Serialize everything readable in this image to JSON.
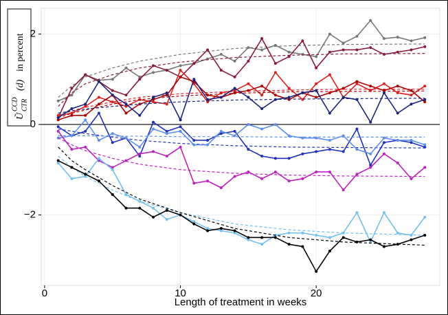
{
  "chart_data": {
    "type": "line",
    "x_label": "Length of treatment in weeks",
    "y_label": {
      "symbol": "Ũ",
      "superscript": "CCD",
      "subscript": "CTR",
      "argument": "(d)",
      "unit": "in percent"
    },
    "x": [
      1,
      2,
      3,
      4,
      5,
      6,
      7,
      8,
      9,
      10,
      11,
      12,
      13,
      14,
      15,
      16,
      17,
      18,
      19,
      20,
      21,
      22,
      23,
      24,
      25,
      26,
      27,
      28
    ],
    "fit_x": [
      1,
      2,
      3,
      5,
      7,
      10,
      14,
      18,
      22,
      28
    ],
    "xlim": [
      -0.25,
      29.1
    ],
    "ylim": [
      -3.56,
      2.57
    ],
    "xticks": [
      0,
      10,
      20
    ],
    "yticks": [
      {
        "value": -2,
        "label": "−2"
      },
      0,
      2
    ],
    "grid": true,
    "zero_line": true,
    "series": [
      {
        "color": "#777777",
        "values": [
          0.52,
          0.65,
          1.1,
          0.98,
          1.0,
          1.25,
          1.05,
          1.15,
          1.2,
          1.3,
          1.35,
          1.45,
          1.55,
          1.4,
          1.7,
          1.65,
          1.75,
          1.6,
          1.55,
          1.5,
          2.0,
          1.8,
          1.95,
          2.3,
          1.9,
          1.93,
          1.85,
          1.92
        ],
        "fit": [
          0.6,
          0.85,
          1.05,
          1.25,
          1.4,
          1.55,
          1.68,
          1.74,
          1.77,
          1.78
        ]
      },
      {
        "color": "#8b1a3a",
        "values": [
          0.15,
          0.8,
          1.1,
          0.95,
          0.75,
          0.65,
          1.0,
          1.3,
          1.2,
          1.05,
          1.35,
          1.65,
          1.2,
          1.05,
          1.4,
          1.9,
          1.35,
          1.5,
          1.85,
          1.25,
          1.6,
          1.65,
          1.65,
          1.7,
          1.55,
          1.6,
          1.65,
          1.72
        ],
        "fit": [
          0.4,
          0.7,
          0.9,
          1.1,
          1.25,
          1.38,
          1.48,
          1.53,
          1.56,
          1.57
        ]
      },
      {
        "color": "#e02020",
        "values": [
          0.2,
          0.25,
          0.4,
          0.6,
          0.5,
          0.4,
          0.55,
          0.5,
          0.45,
          1.2,
          0.9,
          0.5,
          0.7,
          0.75,
          0.9,
          0.65,
          1.15,
          0.8,
          0.55,
          0.9,
          1.1,
          0.6,
          0.9,
          0.75,
          0.9,
          0.7,
          0.65,
          0.85
        ],
        "fit": [
          0.2,
          0.3,
          0.38,
          0.5,
          0.6,
          0.68,
          0.73,
          0.76,
          0.78,
          0.78
        ]
      },
      {
        "color": "#b00000",
        "values": [
          0.1,
          0.2,
          0.2,
          0.45,
          0.65,
          0.25,
          0.45,
          0.55,
          0.65,
          1.05,
          0.95,
          0.65,
          0.6,
          0.7,
          0.75,
          0.85,
          0.65,
          0.55,
          0.7,
          0.6,
          0.7,
          0.8,
          0.95,
          0.85,
          0.75,
          0.85,
          0.75,
          0.5
        ],
        "fit": [
          0.15,
          0.25,
          0.32,
          0.45,
          0.55,
          0.63,
          0.69,
          0.72,
          0.73,
          0.74
        ]
      },
      {
        "color": "#1a237e",
        "values": [
          0.15,
          0.35,
          0.45,
          0.95,
          0.65,
          0.45,
          0.2,
          0.6,
          0.7,
          0.1,
          1.0,
          0.55,
          0.6,
          0.8,
          0.6,
          0.35,
          0.55,
          0.6,
          0.7,
          0.75,
          0.25,
          0.6,
          0.55,
          0.05,
          0.7,
          0.25,
          0.45,
          0.55
        ],
        "fit": [
          0.25,
          0.3,
          0.34,
          0.4,
          0.45,
          0.5,
          0.54,
          0.56,
          0.57,
          0.58
        ]
      },
      {
        "color": "#2030c0",
        "values": [
          -0.05,
          -0.25,
          -0.15,
          0.25,
          -0.4,
          -0.3,
          -0.7,
          0.05,
          -0.15,
          -0.05,
          -0.35,
          -0.35,
          -0.2,
          -0.15,
          -0.55,
          -0.7,
          -0.75,
          -0.75,
          -0.65,
          -0.6,
          -0.55,
          -0.6,
          -0.1,
          -0.9,
          -0.4,
          -0.35,
          -0.4,
          -0.5
        ],
        "fit": [
          -0.1,
          -0.15,
          -0.2,
          -0.28,
          -0.35,
          -0.42,
          -0.47,
          -0.5,
          -0.51,
          -0.52
        ]
      },
      {
        "color": "#5b8ff0",
        "values": [
          -0.3,
          -0.25,
          0.1,
          -0.35,
          -0.2,
          -0.3,
          -0.5,
          -0.1,
          -0.2,
          -0.15,
          -0.45,
          -0.45,
          -0.15,
          -0.25,
          0.0,
          -0.1,
          0.0,
          -0.25,
          -0.3,
          -0.3,
          -0.35,
          -0.25,
          -0.55,
          -0.65,
          -0.3,
          -0.35,
          -0.35,
          -0.45
        ],
        "fit": [
          -0.25,
          -0.25,
          -0.25,
          -0.26,
          -0.26,
          -0.27,
          -0.27,
          -0.28,
          -0.28,
          -0.28
        ]
      },
      {
        "color": "#c020c0",
        "values": [
          -0.15,
          -0.55,
          -0.5,
          -0.8,
          -0.95,
          -0.8,
          -0.65,
          -0.6,
          -0.7,
          -0.5,
          -1.3,
          -1.25,
          -1.4,
          -1.15,
          -1.05,
          -1.2,
          -1.05,
          -1.25,
          -1.2,
          -1.05,
          -1.05,
          -1.45,
          -1.1,
          -0.95,
          -0.65,
          -0.85,
          -1.2,
          -0.95
        ],
        "fit": [
          -0.3,
          -0.45,
          -0.58,
          -0.75,
          -0.88,
          -1.0,
          -1.08,
          -1.12,
          -1.14,
          -1.15
        ]
      },
      {
        "color": "#70c0f0",
        "values": [
          -0.85,
          -1.2,
          -1.15,
          -0.75,
          -1.0,
          -1.55,
          -1.7,
          -1.85,
          -2.1,
          -2.0,
          -2.15,
          -2.3,
          -2.35,
          -2.4,
          -2.55,
          -2.65,
          -2.45,
          -2.4,
          -2.4,
          -2.45,
          -2.5,
          -2.4,
          -1.95,
          -2.6,
          -1.95,
          -2.4,
          -2.45,
          -2.05
        ],
        "fit": [
          -0.7,
          -0.95,
          -1.15,
          -1.45,
          -1.7,
          -1.95,
          -2.2,
          -2.33,
          -2.4,
          -2.45
        ]
      },
      {
        "color": "#000000",
        "values": [
          -0.8,
          -0.95,
          -1.1,
          -1.25,
          -1.55,
          -1.85,
          -1.85,
          -2.05,
          -1.9,
          -2.0,
          -2.2,
          -2.35,
          -2.3,
          -2.35,
          -2.5,
          -2.5,
          -2.5,
          -2.65,
          -2.7,
          -3.25,
          -2.8,
          -2.5,
          -2.6,
          -2.55,
          -2.7,
          -2.65,
          -2.55,
          -2.45
        ],
        "fit": [
          -0.5,
          -0.8,
          -1.0,
          -1.35,
          -1.65,
          -1.95,
          -2.3,
          -2.5,
          -2.6,
          -2.67
        ]
      }
    ]
  }
}
